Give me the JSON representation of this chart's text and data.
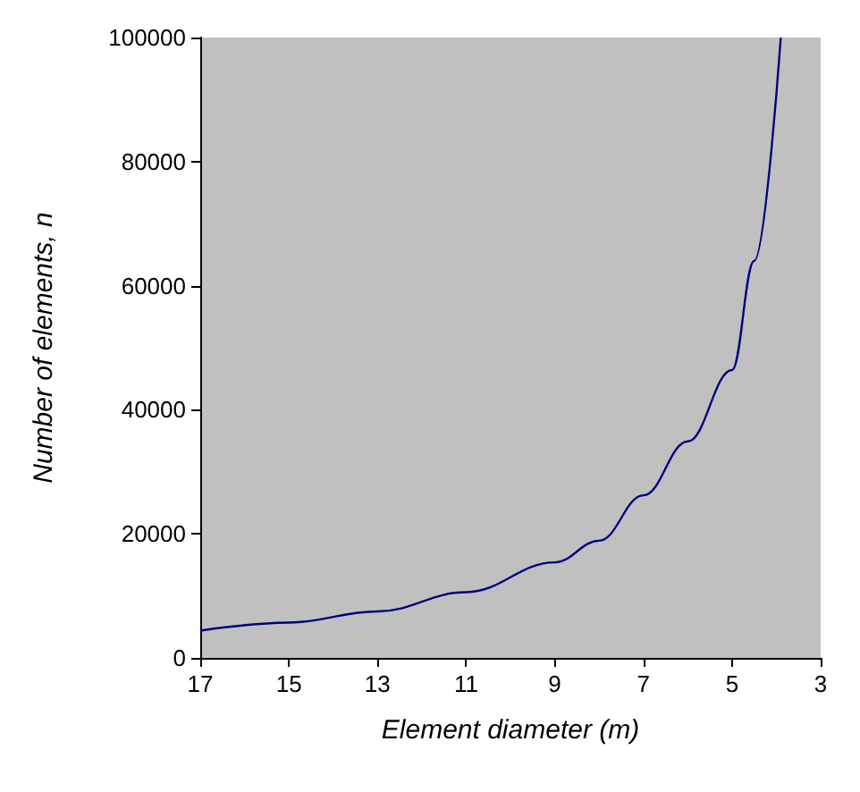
{
  "chart_data": {
    "type": "line",
    "xlabel": "Element diameter (m)",
    "ylabel": "Number of elements, n",
    "x": [
      17,
      15,
      13,
      11,
      9,
      8,
      7,
      6,
      5,
      4.5,
      3.9
    ],
    "series": [
      {
        "color": "#000080",
        "values": [
          4400,
          5700,
          7500,
          10600,
          15400,
          18900,
          26200,
          34900,
          46400,
          64000,
          100000
        ]
      }
    ],
    "xlim": [
      17,
      3
    ],
    "xticks": [
      17,
      15,
      13,
      11,
      9,
      7,
      5,
      3
    ],
    "ylim": [
      0,
      100000
    ],
    "yticks": [
      0,
      20000,
      40000,
      60000,
      80000,
      100000
    ],
    "grid": false,
    "marker": "none",
    "line_style": "solid"
  }
}
